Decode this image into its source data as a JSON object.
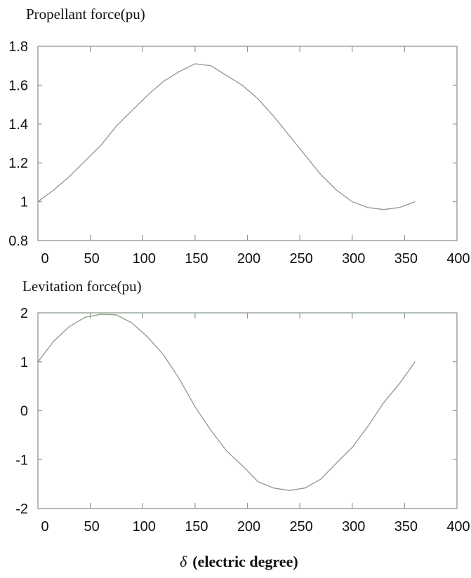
{
  "chart_data": [
    {
      "type": "line",
      "title": "Propellant force(pu)",
      "xlabel": "δ (electric degree)",
      "ylabel": "Propellant force(pu)",
      "xlim": [
        0,
        400
      ],
      "ylim": [
        0.8,
        1.8
      ],
      "xticks": [
        0,
        50,
        100,
        150,
        200,
        250,
        300,
        350,
        400
      ],
      "yticks": [
        0.8,
        1,
        1.2,
        1.4,
        1.6,
        1.8
      ],
      "ytick_labels": [
        "0.8",
        "1",
        "1.2",
        "1.4",
        "1.6",
        "1.8"
      ],
      "grid": false,
      "line_color": "#8c9a8c",
      "x": [
        0,
        15,
        30,
        45,
        60,
        75,
        90,
        105,
        120,
        135,
        150,
        165,
        180,
        195,
        210,
        225,
        240,
        255,
        270,
        285,
        300,
        315,
        330,
        345,
        360
      ],
      "values": [
        1.0,
        1.06,
        1.13,
        1.21,
        1.29,
        1.39,
        1.47,
        1.55,
        1.62,
        1.67,
        1.71,
        1.7,
        1.65,
        1.6,
        1.53,
        1.44,
        1.34,
        1.24,
        1.14,
        1.06,
        1.0,
        0.97,
        0.96,
        0.97,
        1.0
      ]
    },
    {
      "type": "line",
      "title": "Levitation force(pu)",
      "xlabel": "δ (electric degree)",
      "ylabel": "Levitation force(pu)",
      "xlim": [
        0,
        400
      ],
      "ylim": [
        -2,
        2
      ],
      "xticks": [
        0,
        50,
        100,
        150,
        200,
        250,
        300,
        350,
        400
      ],
      "yticks": [
        -2,
        -1,
        0,
        1,
        2
      ],
      "ytick_labels": [
        "-2",
        "-1",
        "0",
        "1",
        "2"
      ],
      "grid": false,
      "line_color": "#8c9a8c",
      "x": [
        0,
        15,
        30,
        45,
        60,
        75,
        90,
        105,
        120,
        135,
        150,
        165,
        180,
        195,
        210,
        225,
        240,
        255,
        270,
        285,
        300,
        315,
        330,
        345,
        360
      ],
      "values": [
        1.0,
        1.42,
        1.72,
        1.91,
        1.97,
        1.96,
        1.79,
        1.5,
        1.14,
        0.65,
        0.08,
        -0.4,
        -0.82,
        -1.12,
        -1.45,
        -1.58,
        -1.63,
        -1.58,
        -1.4,
        -1.07,
        -0.75,
        -0.32,
        0.16,
        0.55,
        1.0
      ]
    }
  ],
  "labels": {
    "top_title": "Propellant force(pu)",
    "bottom_title": "Levitation force(pu)",
    "x_axis_symbol": "δ",
    "x_axis_text": "(electric degree)"
  },
  "style": {
    "axis_color": "#8c9a8c",
    "line_color": "#8c9a8c"
  }
}
